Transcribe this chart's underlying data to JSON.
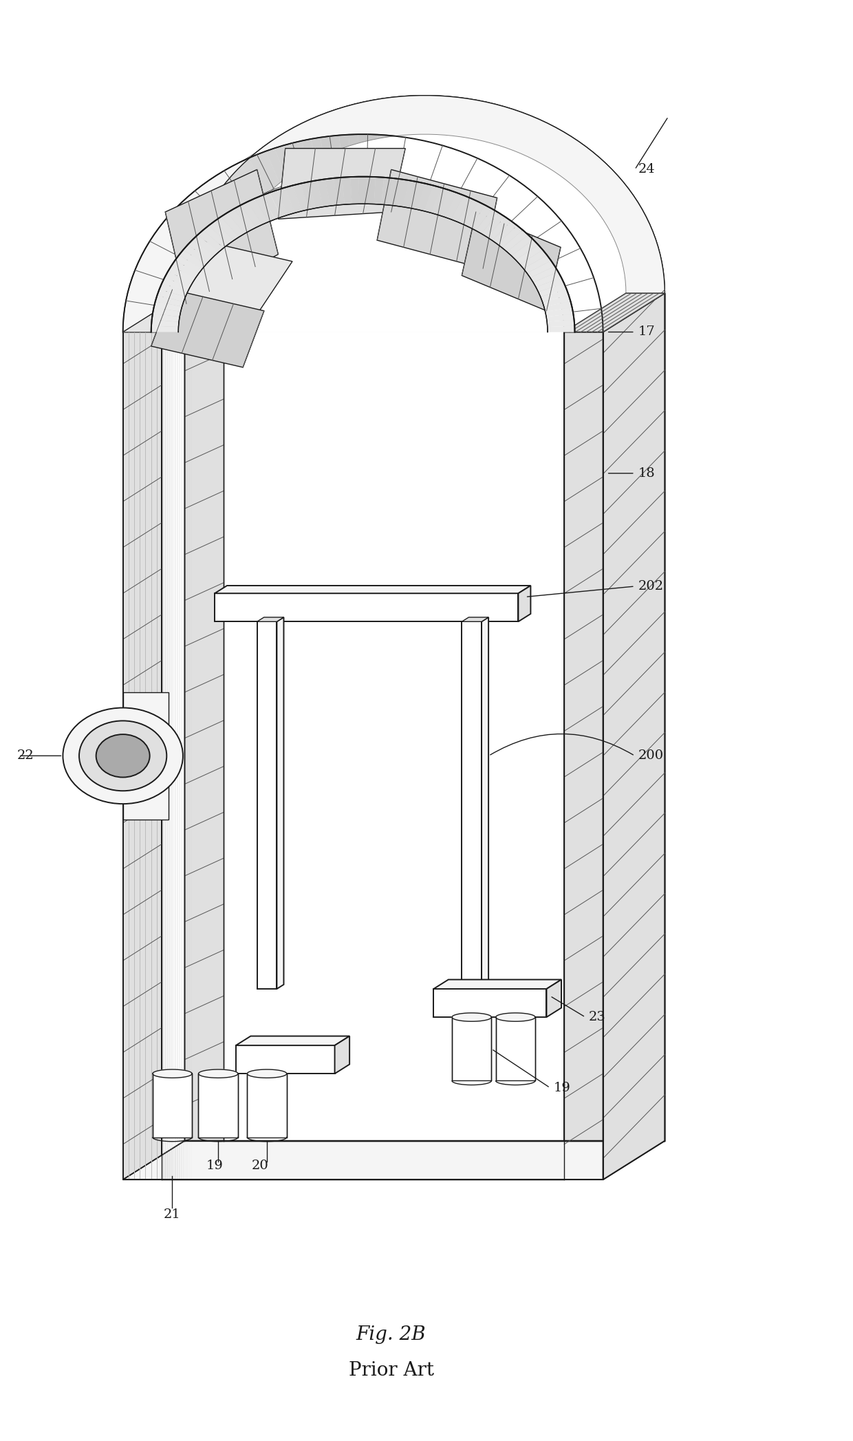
{
  "title": "Fig. 2B",
  "subtitle": "Prior Art",
  "bg": "#ffffff",
  "lc": "#1a1a1a",
  "hatch_color": "#555555",
  "light_fill": "#f5f5f5",
  "mid_fill": "#e0e0e0",
  "dark_fill": "#c0c0c0",
  "white": "#ffffff",
  "label_fontsize": 14,
  "title_fontsize": 20
}
